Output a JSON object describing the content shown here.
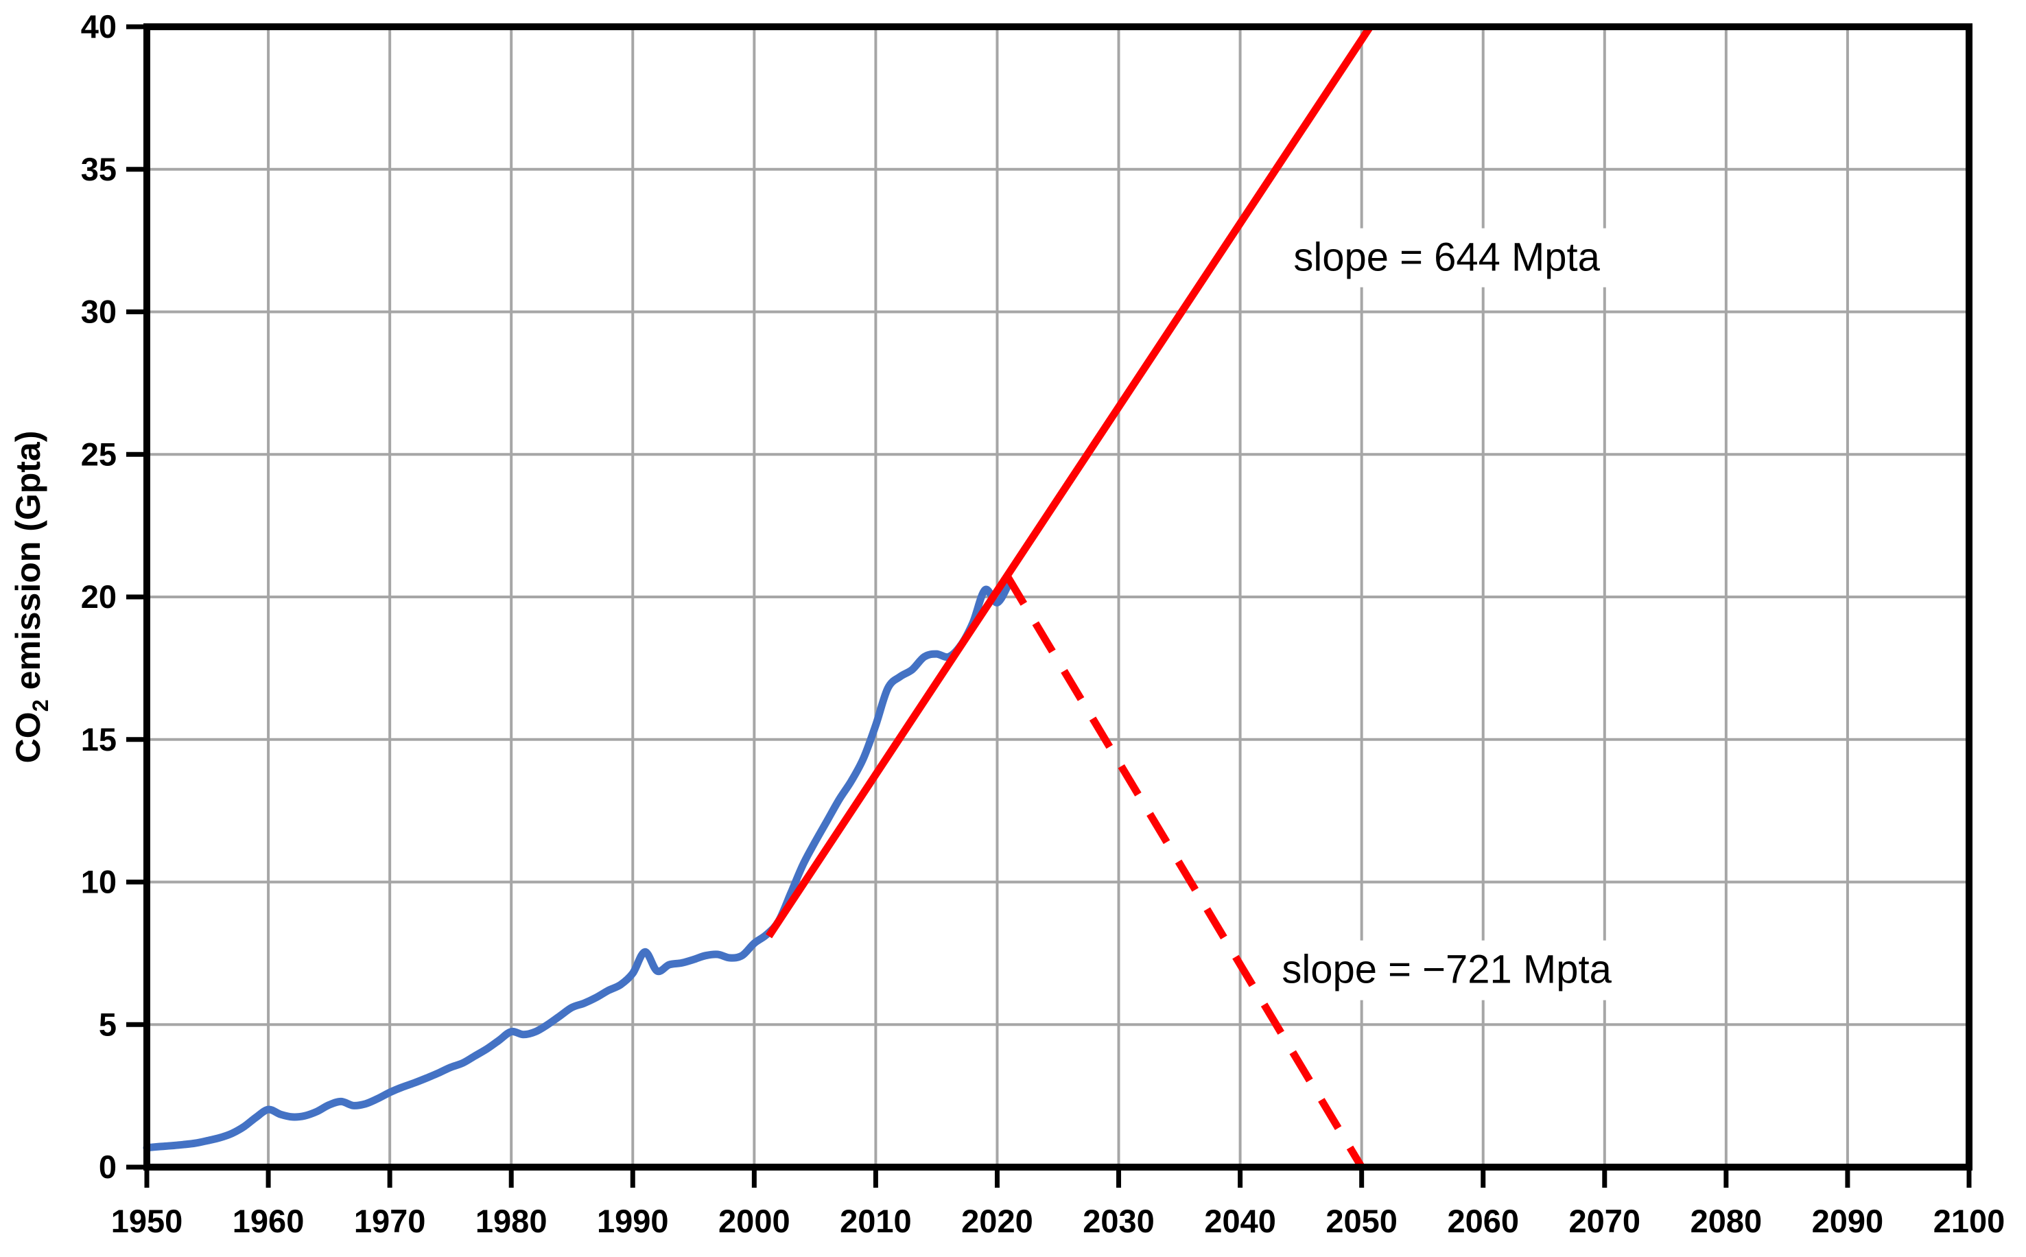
{
  "figure": {
    "background": "#ffffff"
  },
  "chart_data": {
    "type": "line",
    "title": "",
    "xlabel": "",
    "ylabel": "CO₂ emission (Gpta)",
    "xlim": [
      1950,
      2100
    ],
    "ylim": [
      0,
      40
    ],
    "x_ticks": [
      1950,
      1960,
      1970,
      1980,
      1990,
      2000,
      2010,
      2020,
      2030,
      2040,
      2050,
      2060,
      2070,
      2080,
      2090,
      2100
    ],
    "y_ticks": [
      0,
      5,
      10,
      15,
      20,
      25,
      30,
      35,
      40
    ],
    "grid": "on",
    "legend": "none",
    "colors": {
      "historical_line": "#4472C4",
      "trend_line": "#FF0000",
      "grid": "#A6A6A6",
      "axis": "#000000",
      "text": "#000000",
      "annotation_background": "#FFFFFF"
    },
    "series": [
      {
        "name": "historical-co2-emission",
        "style": "solid",
        "smooth": true,
        "color_key": "historical_line",
        "x": [
          1950,
          1951,
          1952,
          1953,
          1954,
          1955,
          1956,
          1957,
          1958,
          1959,
          1960,
          1961,
          1962,
          1963,
          1964,
          1965,
          1966,
          1967,
          1968,
          1969,
          1970,
          1971,
          1972,
          1973,
          1974,
          1975,
          1976,
          1977,
          1978,
          1979,
          1980,
          1981,
          1982,
          1983,
          1984,
          1985,
          1986,
          1987,
          1988,
          1989,
          1990,
          1991,
          1992,
          1993,
          1994,
          1995,
          1996,
          1997,
          1998,
          1999,
          2000,
          2001,
          2002,
          2003,
          2004,
          2005,
          2006,
          2007,
          2008,
          2009,
          2010,
          2011,
          2012,
          2013,
          2014,
          2015,
          2016,
          2017,
          2018,
          2019,
          2020,
          2021
        ],
        "y": [
          0.68,
          0.72,
          0.75,
          0.79,
          0.84,
          0.93,
          1.03,
          1.18,
          1.42,
          1.75,
          2.02,
          1.85,
          1.76,
          1.8,
          1.95,
          2.18,
          2.3,
          2.16,
          2.22,
          2.4,
          2.62,
          2.8,
          2.95,
          3.12,
          3.3,
          3.5,
          3.65,
          3.9,
          4.15,
          4.45,
          4.75,
          4.65,
          4.75,
          5.0,
          5.3,
          5.6,
          5.75,
          5.95,
          6.2,
          6.4,
          6.8,
          7.55,
          6.88,
          7.1,
          7.16,
          7.28,
          7.42,
          7.46,
          7.34,
          7.42,
          7.85,
          8.15,
          8.62,
          9.6,
          10.6,
          11.4,
          12.15,
          12.9,
          13.55,
          14.35,
          15.5,
          16.8,
          17.2,
          17.45,
          17.9,
          18.0,
          17.9,
          18.3,
          19.1,
          20.25,
          19.8,
          20.5
        ]
      },
      {
        "name": "growth-trend-projection",
        "style": "solid",
        "smooth": false,
        "color_key": "trend_line",
        "x": [
          2001.2,
          2050.7
        ],
        "y": [
          8.1,
          40.0
        ],
        "slope_mpta": 644
      },
      {
        "name": "decline-scenario-projection",
        "style": "dashed",
        "smooth": false,
        "color_key": "trend_line",
        "x": [
          2020.8,
          2050.0
        ],
        "y": [
          20.75,
          0.0
        ],
        "slope_mpta": -721
      }
    ],
    "annotations": [
      {
        "name": "slope-644-label",
        "text": "slope = 644 Mpta",
        "x": 2057,
        "y": 31.9
      },
      {
        "name": "slope-minus-721-label",
        "text": "slope = −721 Mpta",
        "x": 2057,
        "y": 6.9
      }
    ]
  }
}
